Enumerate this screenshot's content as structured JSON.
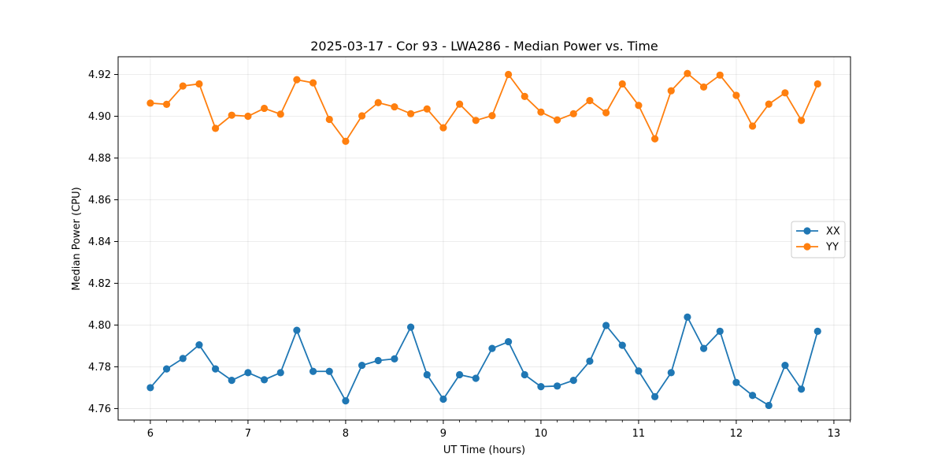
{
  "chart_data": {
    "type": "line",
    "title": "2025-03-17 - Cor 93 - LWA286 - Median Power vs. Time",
    "xlabel": "UT Time (hours)",
    "ylabel": "Median Power (CPU)",
    "xlim": [
      5.67,
      13.17
    ],
    "ylim": [
      4.7545,
      4.9285
    ],
    "xticks": [
      6,
      7,
      8,
      9,
      10,
      11,
      12,
      13
    ],
    "xtick_labels": [
      "6",
      "7",
      "8",
      "9",
      "10",
      "11",
      "12",
      "13"
    ],
    "yticks": [
      4.76,
      4.78,
      4.8,
      4.82,
      4.84,
      4.86,
      4.88,
      4.9,
      4.92
    ],
    "ytick_labels": [
      "4.76",
      "4.78",
      "4.80",
      "4.82",
      "4.84",
      "4.86",
      "4.88",
      "4.90",
      "4.92"
    ],
    "grid": true,
    "legend_position": "center-right",
    "x": [
      6.0,
      6.1667,
      6.3333,
      6.5,
      6.6667,
      6.8333,
      7.0,
      7.1667,
      7.3333,
      7.5,
      7.6667,
      7.8333,
      8.0,
      8.1667,
      8.3333,
      8.5,
      8.6667,
      8.8333,
      9.0,
      9.1667,
      9.3333,
      9.5,
      9.6667,
      9.8333,
      10.0,
      10.1667,
      10.3333,
      10.5,
      10.6667,
      10.8333,
      11.0,
      11.1667,
      11.3333,
      11.5,
      11.6667,
      11.8333,
      12.0,
      12.1667,
      12.3333,
      12.5,
      12.6667,
      12.8333
    ],
    "series": [
      {
        "name": "XX",
        "color": "#1f77b4",
        "values": [
          4.77,
          4.779,
          4.784,
          4.7905,
          4.779,
          4.7735,
          4.7772,
          4.7738,
          4.7772,
          4.7975,
          4.7778,
          4.7778,
          4.7637,
          4.7807,
          4.783,
          4.7838,
          4.799,
          4.7762,
          4.7645,
          4.7762,
          4.7745,
          4.7888,
          4.792,
          4.7762,
          4.7705,
          4.7708,
          4.7735,
          4.7827,
          4.7998,
          4.7903,
          4.778,
          4.7657,
          4.7772,
          4.8038,
          4.7888,
          4.797,
          4.7725,
          4.7663,
          4.7615,
          4.7807,
          4.7693,
          4.797
        ]
      },
      {
        "name": "YY",
        "color": "#ff7f0e",
        "values": [
          4.9063,
          4.9057,
          4.9145,
          4.9155,
          4.8942,
          4.9005,
          4.9,
          4.9038,
          4.901,
          4.9175,
          4.916,
          4.8985,
          4.888,
          4.9002,
          4.9065,
          4.9045,
          4.9012,
          4.9035,
          4.8945,
          4.9058,
          4.898,
          4.9003,
          4.92,
          4.9095,
          4.902,
          4.8982,
          4.9012,
          4.9075,
          4.9017,
          4.9155,
          4.9052,
          4.8892,
          4.9122,
          4.9205,
          4.914,
          4.9197,
          4.91,
          4.8953,
          4.9058,
          4.9112,
          4.898,
          4.9155
        ]
      }
    ]
  }
}
